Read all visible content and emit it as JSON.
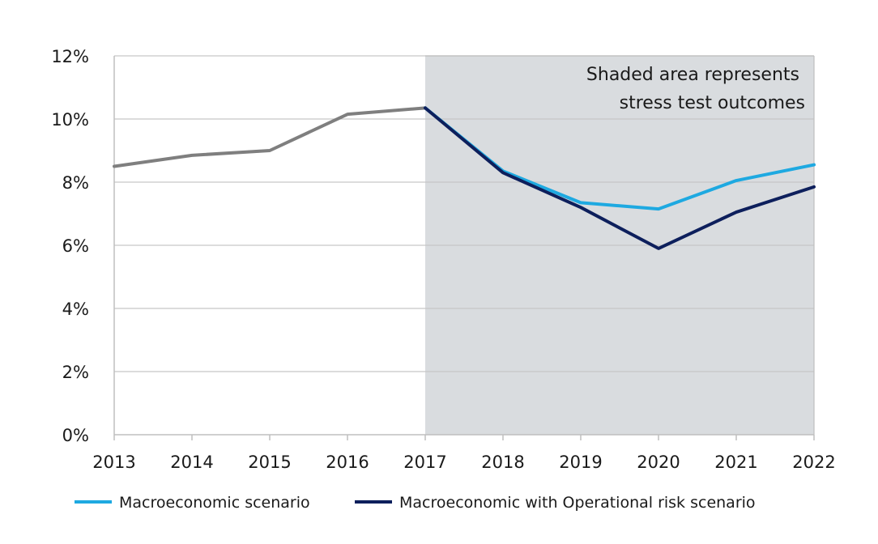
{
  "chart_data": {
    "type": "line",
    "title": "",
    "xlabel": "",
    "ylabel": "",
    "x": [
      "2013",
      "2014",
      "2015",
      "2016",
      "2017",
      "2018",
      "2019",
      "2020",
      "2021",
      "2022"
    ],
    "ylim": [
      0,
      12
    ],
    "yticks": [
      "0%",
      "2%",
      "4%",
      "6%",
      "8%",
      "10%",
      "12%"
    ],
    "grid": true,
    "shaded_region": {
      "from": "2017",
      "to": "2022",
      "color": "#d9dcdf"
    },
    "annotation": {
      "line1": "Shaded area represents",
      "line2": "stress test outcomes"
    },
    "historical": {
      "color": "#7f7f7f",
      "x": [
        "2013",
        "2014",
        "2015",
        "2016",
        "2017"
      ],
      "values": [
        8.5,
        8.85,
        9.0,
        10.15,
        10.35
      ]
    },
    "series": [
      {
        "name": "Macroeconomic scenario",
        "color": "#1ea9e1",
        "x": [
          "2017",
          "2018",
          "2019",
          "2020",
          "2021",
          "2022"
        ],
        "values": [
          10.35,
          8.35,
          7.35,
          7.15,
          8.05,
          8.55
        ]
      },
      {
        "name": "Macroeconomic with Operational risk scenario",
        "color": "#0d1f5c",
        "x": [
          "2017",
          "2018",
          "2019",
          "2020",
          "2021",
          "2022"
        ],
        "values": [
          10.35,
          8.3,
          7.2,
          5.9,
          7.05,
          7.85
        ]
      }
    ],
    "legend": "bottom"
  }
}
